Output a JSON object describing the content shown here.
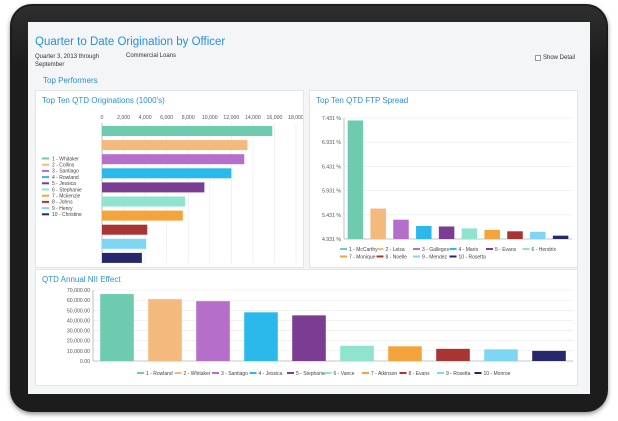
{
  "header": {
    "title": "Quarter to Date Origination by Officer",
    "subtitle": "Quarter 3, 2013 through September",
    "category": "Commercial Loans",
    "show_detail_label": "Show Detail"
  },
  "section_title": "Top Performers",
  "colors": [
    "#6ecbb0",
    "#f4b97d",
    "#b56ec9",
    "#2ab9ea",
    "#7b3d91",
    "#8fe3cf",
    "#f4a43c",
    "#a83434",
    "#7fd6f2",
    "#26286c"
  ],
  "chart_data": [
    {
      "type": "bar",
      "orientation": "horizontal",
      "title": "Top Ten QTD Originations (1000's)",
      "categories": [
        "1 - Whitaker",
        "2 - Collins",
        "3 - Santiago",
        "4 - Rowland",
        "5 - Jessica",
        "6 - Stephanie",
        "7 - Mckenzie",
        "8 - Johns",
        "9 - Henry",
        "10 - Christine"
      ],
      "values": [
        15800,
        13500,
        13200,
        12000,
        9500,
        7700,
        7500,
        4200,
        4100,
        3700
      ],
      "xlim": [
        0,
        18000
      ],
      "ticks": [
        "0",
        "2,000",
        "4,000",
        "6,000",
        "8,000",
        "10,000",
        "12,000",
        "14,000",
        "16,000",
        "18,000"
      ],
      "legend": "left"
    },
    {
      "type": "bar",
      "title": "Top Ten QTD FTP Spread",
      "categories": [
        "1 - McCarthy",
        "2 - Leisa",
        "3 - Gallegos",
        "4 - Mario",
        "5 - Evans",
        "6 - Hendrix",
        "7 - Monique",
        "8 - Noelle",
        "9 - Mendez",
        "10 - Rosetta"
      ],
      "values": [
        7.38,
        5.56,
        5.33,
        5.2,
        5.19,
        5.15,
        5.12,
        5.09,
        5.08,
        5.0
      ],
      "ylim": [
        4.931,
        7.431
      ],
      "ticks": [
        "4.931 %",
        "5.431 %",
        "5.931 %",
        "6.431 %",
        "6.931 %",
        "7.431 %"
      ],
      "legend": "bottom"
    },
    {
      "type": "bar",
      "title": "QTD Annual NII Effect",
      "categories": [
        "1 - Rowland",
        "2 - Whitaker",
        "3 - Santiago",
        "4 - Jessica",
        "5 - Stephanie",
        "6 - Vance",
        "7 - Atkinson",
        "8 - Evans",
        "9 - Rosetta",
        "10 - Monroe"
      ],
      "values": [
        66000,
        61000,
        59000,
        48000,
        45000,
        15000,
        14500,
        12000,
        11500,
        10000
      ],
      "ylim": [
        0,
        70000
      ],
      "ticks": [
        "0.00",
        "10,000.00",
        "20,000.00",
        "30,000.00",
        "40,000.00",
        "50,000.00",
        "60,000.00",
        "70,000.00"
      ],
      "legend": "bottom"
    }
  ]
}
